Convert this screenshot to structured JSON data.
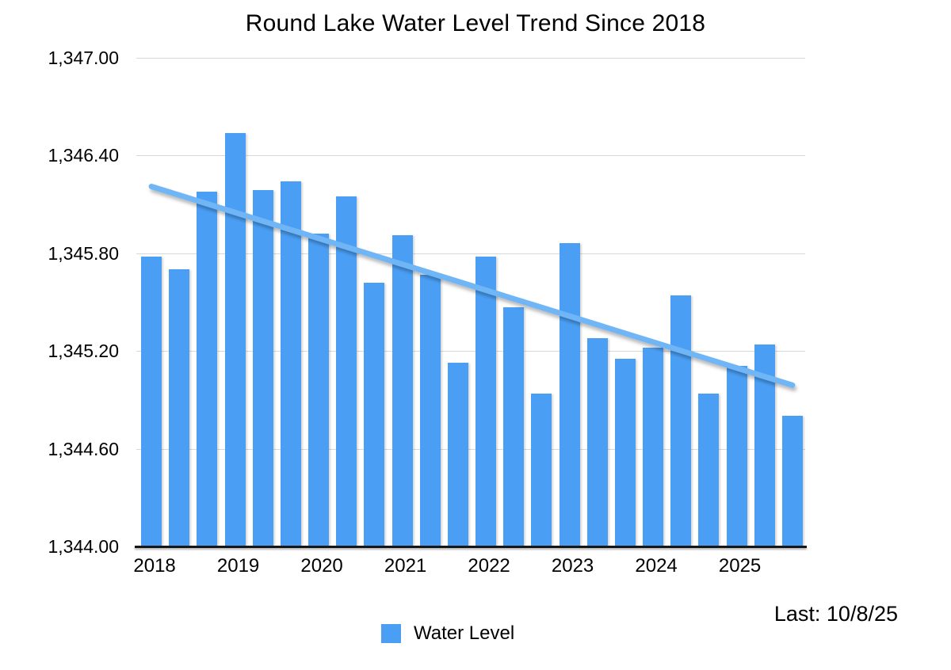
{
  "title": "Round Lake Water Level Trend Since 2018",
  "footer": {
    "last_reading": "Last: 10/8/25"
  },
  "legend": {
    "items": [
      {
        "label": "Water Level",
        "color": "#4a9ff5"
      }
    ]
  },
  "colors": {
    "bar": "#4a9ff5",
    "trendline": "#6fb5f5",
    "gridline": "#d8d8d8",
    "axis": "#161616",
    "text": "#000000"
  },
  "chart_data": {
    "type": "bar",
    "title": "Round Lake Water Level Trend Since 2018",
    "xlabel": "",
    "ylabel": "",
    "ylim": [
      1344.0,
      1347.0
    ],
    "grid": true,
    "legend_position": "bottom",
    "legend_entries": [
      "Water Level"
    ],
    "y_ticks": [
      {
        "value": 1344.0,
        "label": "1,344.00"
      },
      {
        "value": 1344.6,
        "label": "1,344.60"
      },
      {
        "value": 1345.2,
        "label": "1,345.20"
      },
      {
        "value": 1345.8,
        "label": "1,345.80"
      },
      {
        "value": 1346.4,
        "label": "1,346.40"
      },
      {
        "value": 1347.0,
        "label": "1,347.00"
      }
    ],
    "x_tick_labels": [
      "2018",
      "2019",
      "2020",
      "2021",
      "2022",
      "2023",
      "2024",
      "2025"
    ],
    "bars_per_year": 3,
    "series": [
      {
        "name": "Water Level",
        "values": [
          1345.78,
          1345.7,
          1346.18,
          1346.54,
          1346.19,
          1346.24,
          1345.92,
          1346.15,
          1345.62,
          1345.91,
          1345.67,
          1345.13,
          1345.78,
          1345.47,
          1344.94,
          1345.86,
          1345.28,
          1345.15,
          1345.22,
          1345.54,
          1344.94,
          1345.11,
          1345.24,
          1344.8
        ]
      }
    ],
    "trendline": {
      "name": "linear-trend",
      "start_value": 1346.21,
      "end_value": 1344.99
    }
  }
}
